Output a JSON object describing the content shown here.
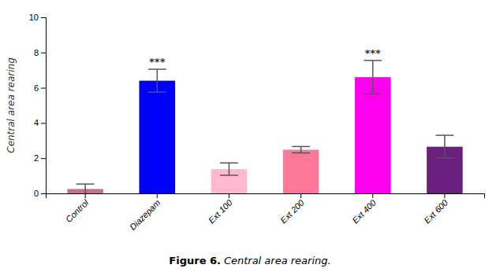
{
  "chart_data": {
    "type": "bar",
    "categories": [
      "Control",
      "Diazepam",
      "Ext 100",
      "Ext 200",
      "Ext 400",
      "Ext 600"
    ],
    "values": [
      0.25,
      6.4,
      1.38,
      2.48,
      6.6,
      2.65
    ],
    "errors": [
      0.28,
      0.65,
      0.35,
      0.18,
      0.95,
      0.65
    ],
    "colors": [
      "#c87090",
      "#0000ff",
      "#ffb8d0",
      "#ff7898",
      "#ff00ee",
      "#6b2080"
    ],
    "significance": [
      null,
      "***",
      null,
      null,
      "***",
      null
    ],
    "y_label": "Central area rearing",
    "ylim": [
      0,
      10
    ],
    "yticks": [
      0,
      2,
      4,
      6,
      8,
      10
    ],
    "grid": false,
    "caption": {
      "label": "Figure 6.",
      "text": "Central area rearing."
    }
  }
}
